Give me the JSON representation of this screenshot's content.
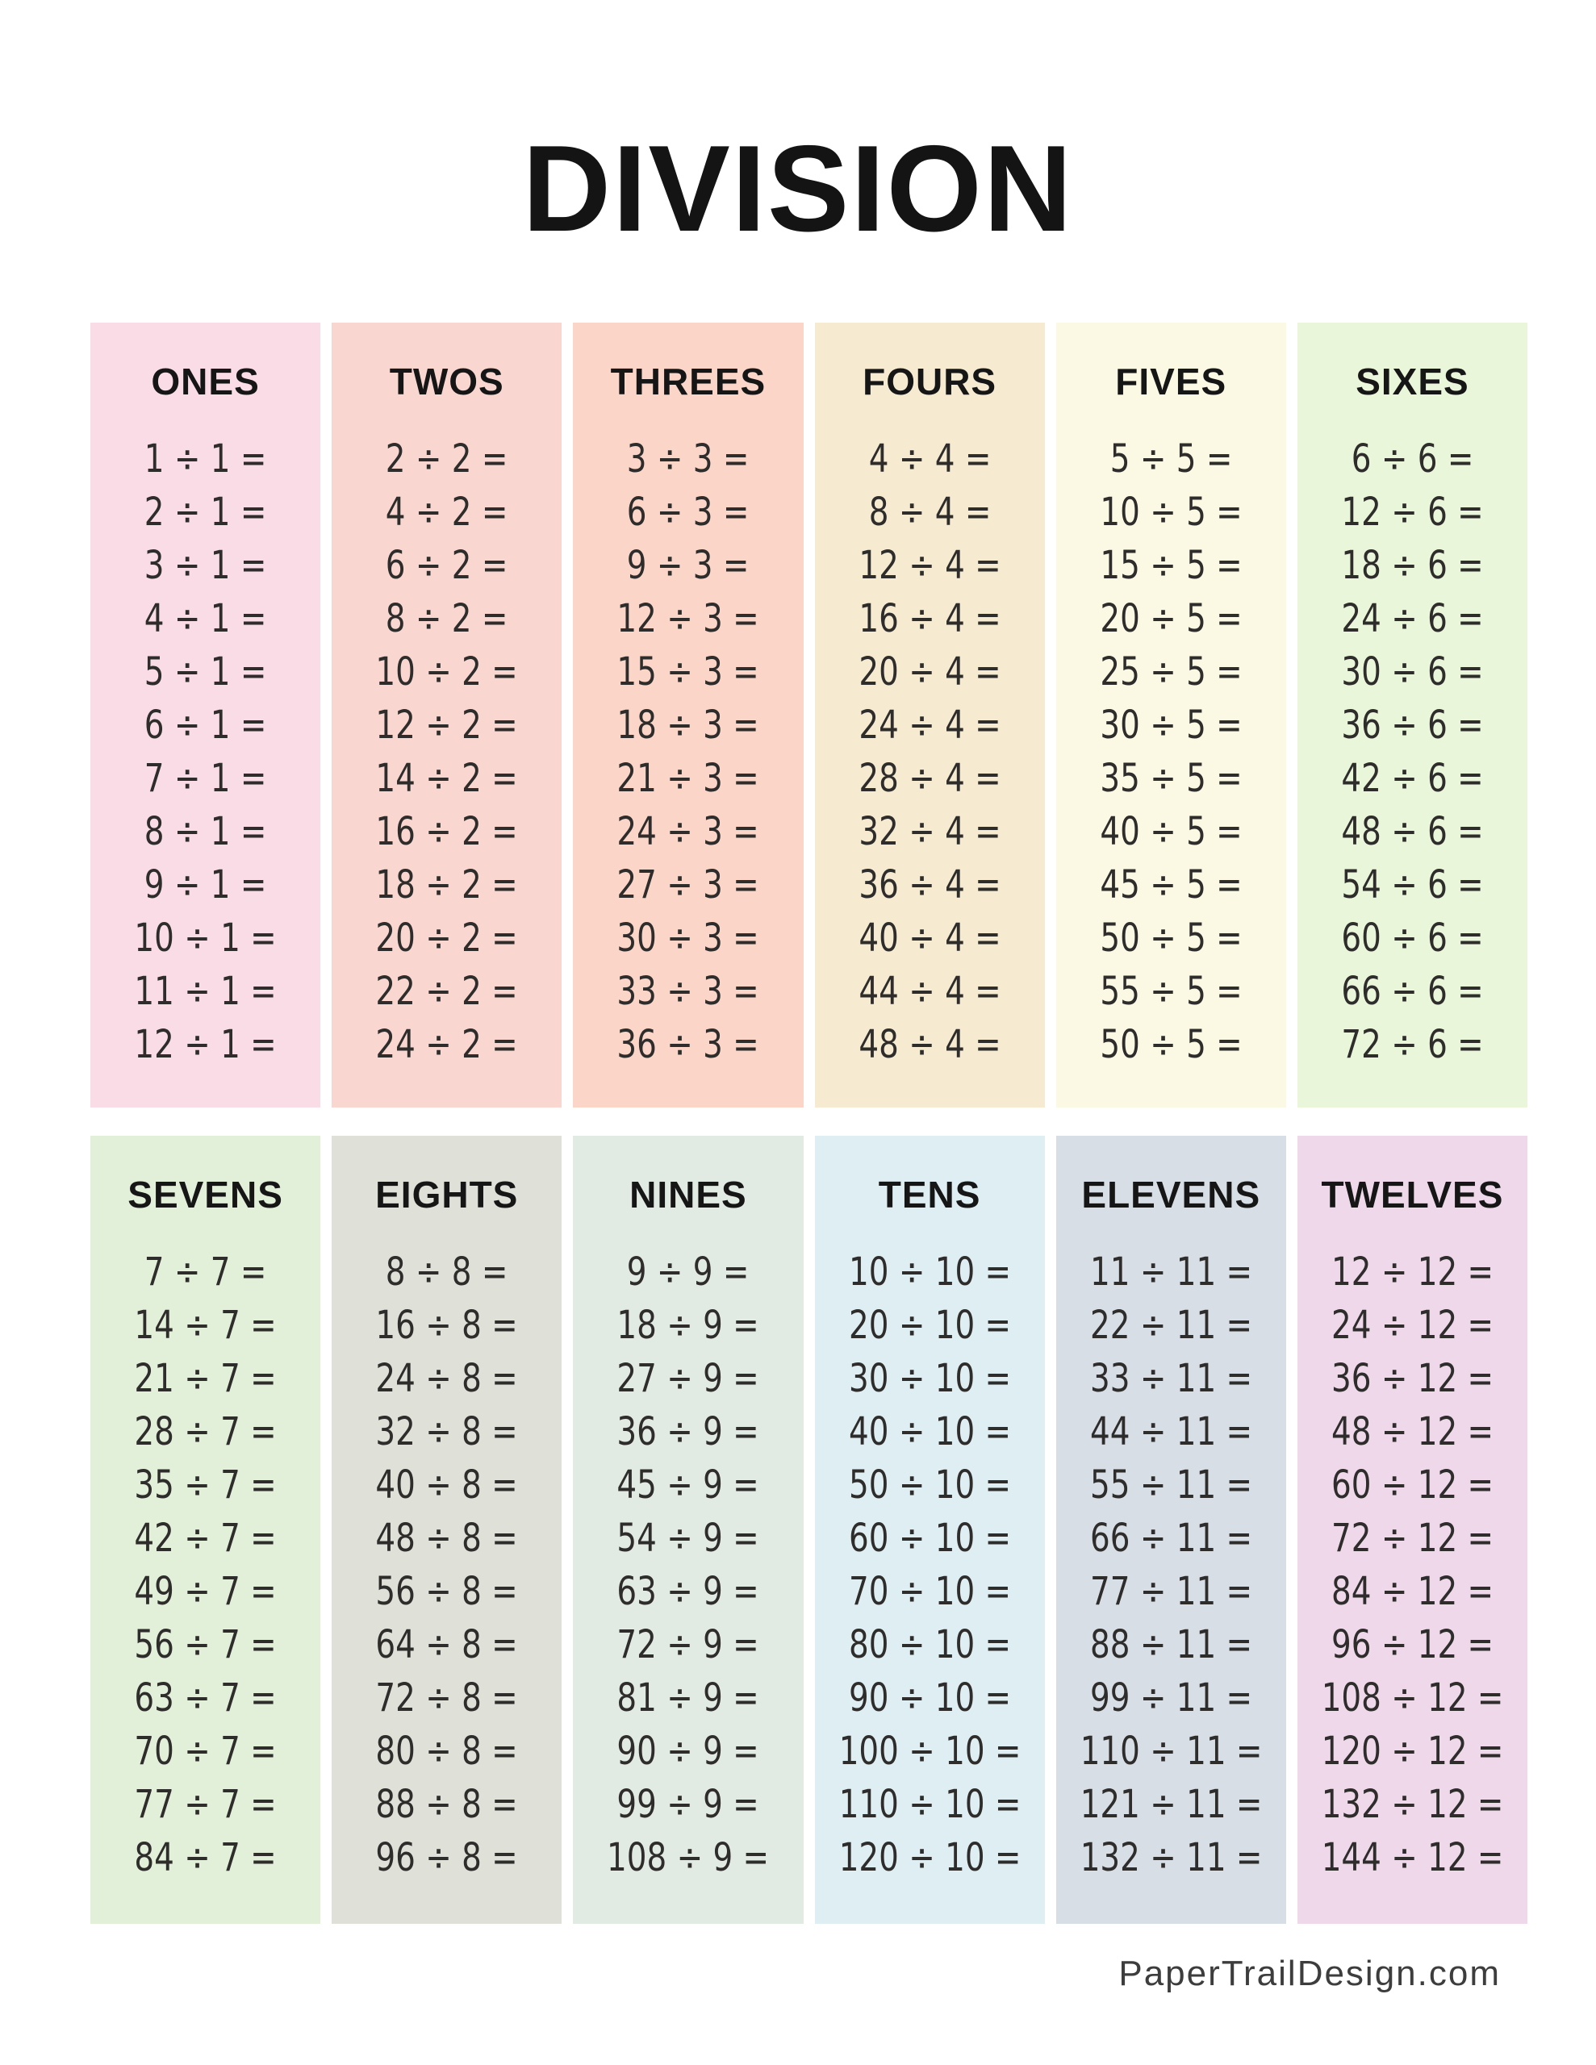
{
  "title": "DIVISION",
  "footer": {
    "credit": "PaperTrailDesign.com"
  },
  "colors": {
    "page_background": "#ffffff",
    "title_text": "#141414",
    "problem_text": "#2e2d2c",
    "footer_text": "#3d3d3d"
  },
  "sections": [
    {
      "columns": [
        {
          "label": "ONES",
          "color": "#fadce7",
          "problems": [
            "1 ÷ 1 =",
            "2 ÷ 1 =",
            "3 ÷ 1 =",
            "4 ÷ 1 =",
            "5 ÷ 1 =",
            "6 ÷ 1 =",
            "7 ÷ 1 =",
            "8 ÷ 1 =",
            "9 ÷ 1 =",
            "10 ÷ 1 =",
            "11 ÷ 1 =",
            "12 ÷ 1 ="
          ]
        },
        {
          "label": "TWOS",
          "color": "#f9d7d0",
          "problems": [
            "2 ÷ 2 =",
            "4 ÷ 2 =",
            "6 ÷ 2 =",
            "8 ÷ 2 =",
            "10 ÷ 2 =",
            "12 ÷ 2 =",
            "14 ÷ 2 =",
            "16 ÷ 2 =",
            "18 ÷ 2 =",
            "20 ÷ 2 =",
            "22 ÷ 2 =",
            "24 ÷ 2 ="
          ]
        },
        {
          "label": "THREES",
          "color": "#fbd5c8",
          "problems": [
            "3 ÷ 3 =",
            "6 ÷ 3 =",
            "9 ÷ 3 =",
            "12 ÷ 3 =",
            "15 ÷ 3 =",
            "18 ÷ 3 =",
            "21 ÷ 3 =",
            "24 ÷ 3 =",
            "27 ÷ 3 =",
            "30 ÷ 3 =",
            "33 ÷ 3 =",
            "36 ÷ 3 ="
          ]
        },
        {
          "label": "FOURS",
          "color": "#f6ebd1",
          "problems": [
            "4 ÷ 4 =",
            "8 ÷ 4 =",
            "12 ÷ 4 =",
            "16 ÷ 4 =",
            "20 ÷ 4 =",
            "24 ÷ 4 =",
            "28 ÷ 4 =",
            "32 ÷ 4 =",
            "36 ÷ 4 =",
            "40 ÷ 4 =",
            "44 ÷ 4 =",
            "48 ÷ 4 ="
          ]
        },
        {
          "label": "FIVES",
          "color": "#fbf9e4",
          "problems": [
            "5 ÷ 5 =",
            "10 ÷ 5 =",
            "15 ÷ 5 =",
            "20 ÷ 5 =",
            "25 ÷ 5 =",
            "30 ÷ 5 =",
            "35 ÷ 5 =",
            "40 ÷ 5 =",
            "45 ÷ 5 =",
            "50 ÷ 5 =",
            "55 ÷ 5 =",
            "50 ÷ 5 ="
          ]
        },
        {
          "label": "SIXES",
          "color": "#e9f6da",
          "problems": [
            "6 ÷ 6 =",
            "12 ÷ 6 =",
            "18 ÷ 6 =",
            "24 ÷ 6 =",
            "30 ÷ 6 =",
            "36 ÷ 6 =",
            "42 ÷ 6 =",
            "48 ÷ 6 =",
            "54 ÷ 6 =",
            "60 ÷ 6 =",
            "66 ÷ 6 =",
            "72 ÷ 6 ="
          ]
        }
      ]
    },
    {
      "columns": [
        {
          "label": "SEVENS",
          "color": "#e3f0d9",
          "problems": [
            "7 ÷ 7 =",
            "14 ÷ 7 =",
            "21 ÷ 7 =",
            "28 ÷ 7 =",
            "35 ÷ 7 =",
            "42 ÷ 7 =",
            "49 ÷ 7 =",
            "56 ÷ 7 =",
            "63 ÷ 7 =",
            "70 ÷ 7 =",
            "77 ÷ 7 =",
            "84 ÷ 7 ="
          ]
        },
        {
          "label": "EIGHTS",
          "color": "#dfe0d7",
          "problems": [
            "8 ÷ 8 =",
            "16 ÷ 8 =",
            "24 ÷ 8 =",
            "32 ÷ 8 =",
            "40 ÷ 8 =",
            "48 ÷ 8 =",
            "56 ÷ 8 =",
            "64 ÷ 8 =",
            "72 ÷ 8 =",
            "80 ÷ 8 =",
            "88 ÷ 8 =",
            "96 ÷ 8 ="
          ]
        },
        {
          "label": "NINES",
          "color": "#e1eae3",
          "problems": [
            "9 ÷ 9 =",
            "18 ÷ 9 =",
            "27 ÷ 9 =",
            "36 ÷ 9 =",
            "45 ÷ 9 =",
            "54 ÷ 9 =",
            "63 ÷ 9 =",
            "72 ÷ 9 =",
            "81 ÷ 9 =",
            "90 ÷ 9 =",
            "99 ÷ 9 =",
            "108 ÷ 9 ="
          ]
        },
        {
          "label": "TENS",
          "color": "#dfeef2",
          "problems": [
            "10 ÷ 10 =",
            "20 ÷ 10 =",
            "30 ÷ 10 =",
            "40 ÷ 10 =",
            "50 ÷ 10 =",
            "60 ÷ 10 =",
            "70 ÷ 10 =",
            "80 ÷ 10 =",
            "90 ÷ 10 =",
            "100 ÷ 10 =",
            "110 ÷ 10 =",
            "120 ÷ 10 ="
          ]
        },
        {
          "label": "ELEVENS",
          "color": "#d7dee5",
          "problems": [
            "11 ÷ 11 =",
            "22 ÷ 11 =",
            "33 ÷ 11 =",
            "44 ÷ 11 =",
            "55 ÷ 11 =",
            "66 ÷ 11 =",
            "77 ÷ 11 =",
            "88 ÷ 11 =",
            "99 ÷ 11 =",
            "110 ÷ 11 =",
            "121 ÷ 11 =",
            "132 ÷ 11 ="
          ]
        },
        {
          "label": "TWELVES",
          "color": "#eed8ea",
          "problems": [
            "12 ÷ 12 =",
            "24 ÷ 12 =",
            "36 ÷ 12 =",
            "48 ÷ 12 =",
            "60 ÷ 12 =",
            "72 ÷ 12 =",
            "84 ÷ 12 =",
            "96 ÷ 12 =",
            "108 ÷ 12 =",
            "120 ÷ 12 =",
            "132 ÷ 12 =",
            "144 ÷ 12 ="
          ]
        }
      ]
    }
  ]
}
